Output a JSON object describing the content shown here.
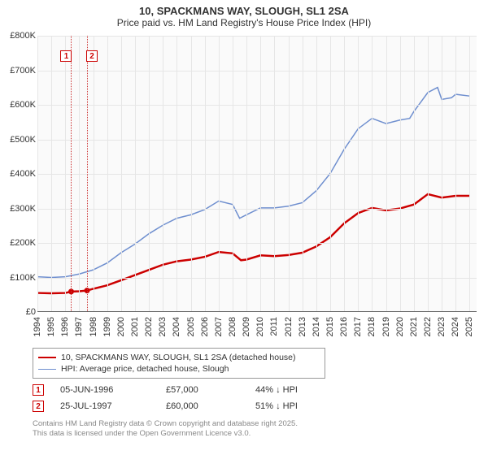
{
  "title": "10, SPACKMANS WAY, SLOUGH, SL1 2SA",
  "subtitle": "Price paid vs. HM Land Registry's House Price Index (HPI)",
  "chart": {
    "type": "line",
    "background_color": "#fafafa",
    "grid_color": "#e6e6e6",
    "axis_color": "#646464",
    "text_color": "#333333",
    "label_fontsize": 11,
    "x": {
      "min": 1994,
      "max": 2025.5,
      "ticks": [
        1994,
        1995,
        1996,
        1997,
        1998,
        1999,
        2000,
        2001,
        2002,
        2003,
        2004,
        2005,
        2006,
        2007,
        2008,
        2009,
        2010,
        2011,
        2012,
        2013,
        2014,
        2015,
        2016,
        2017,
        2018,
        2019,
        2020,
        2021,
        2022,
        2023,
        2024,
        2025
      ]
    },
    "y": {
      "min": 0,
      "max": 800000,
      "ticks": [
        0,
        100000,
        200000,
        300000,
        400000,
        500000,
        600000,
        700000,
        800000
      ],
      "tick_labels": [
        "£0",
        "£100K",
        "£200K",
        "£300K",
        "£400K",
        "£500K",
        "£600K",
        "£700K",
        "£800K"
      ]
    },
    "series": {
      "hpi": {
        "label": "HPI: Average price, detached house, Slough",
        "color": "#6f8fcf",
        "width": 1.5,
        "data": [
          [
            1994,
            100000
          ],
          [
            1995,
            98000
          ],
          [
            1996,
            100000
          ],
          [
            1997,
            108000
          ],
          [
            1998,
            120000
          ],
          [
            1999,
            140000
          ],
          [
            2000,
            170000
          ],
          [
            2001,
            195000
          ],
          [
            2002,
            225000
          ],
          [
            2003,
            250000
          ],
          [
            2004,
            270000
          ],
          [
            2005,
            280000
          ],
          [
            2006,
            295000
          ],
          [
            2007,
            320000
          ],
          [
            2008,
            310000
          ],
          [
            2008.5,
            270000
          ],
          [
            2009,
            280000
          ],
          [
            2010,
            300000
          ],
          [
            2011,
            300000
          ],
          [
            2012,
            305000
          ],
          [
            2013,
            315000
          ],
          [
            2014,
            350000
          ],
          [
            2015,
            400000
          ],
          [
            2016,
            470000
          ],
          [
            2017,
            530000
          ],
          [
            2018,
            560000
          ],
          [
            2019,
            545000
          ],
          [
            2020,
            555000
          ],
          [
            2020.7,
            560000
          ],
          [
            2021,
            580000
          ],
          [
            2022,
            635000
          ],
          [
            2022.7,
            650000
          ],
          [
            2023,
            615000
          ],
          [
            2023.7,
            620000
          ],
          [
            2024,
            630000
          ],
          [
            2025,
            625000
          ]
        ]
      },
      "price": {
        "label": "10, SPACKMANS WAY, SLOUGH, SL1 2SA (detached house)",
        "color": "#cc0000",
        "width": 2.5,
        "data": [
          [
            1994,
            53000
          ],
          [
            1995,
            52000
          ],
          [
            1996,
            53000
          ],
          [
            1996.42,
            57000
          ],
          [
            1997,
            58000
          ],
          [
            1997.56,
            60000
          ],
          [
            1998,
            65000
          ],
          [
            1999,
            75000
          ],
          [
            2000,
            90000
          ],
          [
            2001,
            105000
          ],
          [
            2002,
            120000
          ],
          [
            2003,
            135000
          ],
          [
            2004,
            145000
          ],
          [
            2005,
            150000
          ],
          [
            2006,
            158000
          ],
          [
            2007,
            172000
          ],
          [
            2008,
            168000
          ],
          [
            2008.6,
            148000
          ],
          [
            2009,
            150000
          ],
          [
            2010,
            162000
          ],
          [
            2011,
            160000
          ],
          [
            2012,
            163000
          ],
          [
            2013,
            170000
          ],
          [
            2014,
            188000
          ],
          [
            2015,
            215000
          ],
          [
            2016,
            255000
          ],
          [
            2017,
            285000
          ],
          [
            2018,
            300000
          ],
          [
            2019,
            293000
          ],
          [
            2020,
            298000
          ],
          [
            2021,
            310000
          ],
          [
            2022,
            340000
          ],
          [
            2023,
            330000
          ],
          [
            2024,
            335000
          ],
          [
            2025,
            335000
          ]
        ]
      }
    },
    "markers": [
      {
        "id": "1",
        "year": 1996.42,
        "color": "#cc0000"
      },
      {
        "id": "2",
        "year": 1997.56,
        "color": "#cc0000"
      }
    ],
    "sale_points": [
      {
        "year": 1996.42,
        "value": 57000
      },
      {
        "year": 1997.56,
        "value": 60000
      }
    ]
  },
  "legend": {
    "border_color": "#999999",
    "rows": [
      {
        "color": "#cc0000",
        "width": 2.5,
        "label": "10, SPACKMANS WAY, SLOUGH, SL1 2SA (detached house)"
      },
      {
        "color": "#6f8fcf",
        "width": 1.5,
        "label": "HPI: Average price, detached house, Slough"
      }
    ]
  },
  "transactions": [
    {
      "id": "1",
      "date": "05-JUN-1996",
      "price": "£57,000",
      "delta": "44% ↓ HPI"
    },
    {
      "id": "2",
      "date": "25-JUL-1997",
      "price": "£60,000",
      "delta": "51% ↓ HPI"
    }
  ],
  "attribution": {
    "line1": "Contains HM Land Registry data © Crown copyright and database right 2025.",
    "line2": "This data is licensed under the Open Government Licence v3.0."
  }
}
